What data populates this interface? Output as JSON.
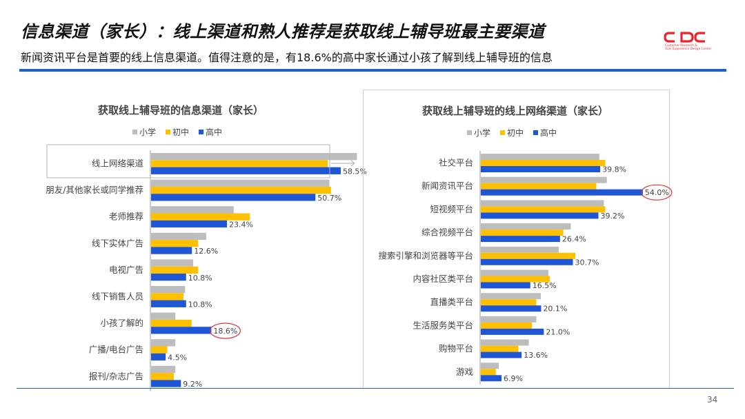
{
  "header": {
    "title": "信息渠道（家长）：线上渠道和熟人推荐是获取线上辅导班最主要渠道",
    "subtitle": "新闻资讯平台是首要的线上信息渠道。值得注意的是，有18.6%的高中家长通过小孩了解到线上辅导班的信息"
  },
  "logo": {
    "text": "CDC",
    "line1": "Customer Research &",
    "line2": "User Experience Design Center",
    "color": "#e8242c"
  },
  "page_number": "34",
  "colors": {
    "小学": "#bdbdbd",
    "初中": "#ffc000",
    "高中": "#1f56d6",
    "accent_line": "#1f5fc8",
    "highlight_circle": "#d9343a"
  },
  "chart_data": [
    {
      "type": "bar",
      "orientation": "horizontal",
      "title": "获取线上辅导班的信息渠道（家长）",
      "legend_position": "top",
      "categories": [
        "线上网络渠道",
        "朋友/其他家长或同学推荐",
        "老师推荐",
        "线下实体广告",
        "电视广告",
        "线下销售人员",
        "小孩了解的",
        "广播/电台广告",
        "报刊/杂志广告"
      ],
      "series": [
        {
          "name": "小学",
          "values": [
            63.5,
            55.0,
            25.5,
            17.0,
            13.0,
            10.5,
            7.5,
            7.5,
            7.5
          ]
        },
        {
          "name": "初中",
          "values": [
            54.5,
            55.5,
            30.5,
            14.5,
            14.5,
            10.0,
            12.5,
            5.0,
            7.0
          ]
        },
        {
          "name": "高中",
          "values": [
            58.5,
            50.7,
            23.4,
            12.6,
            10.8,
            10.8,
            18.6,
            4.5,
            9.2
          ]
        }
      ],
      "value_labels": [
        "58.5%",
        "50.7%",
        "23.4%",
        "12.6%",
        "10.8%",
        "10.8%",
        "18.6%",
        "4.5%",
        "9.2%"
      ],
      "highlight_box_category": "线上网络渠道",
      "circled_label": "18.6%",
      "xlim": [
        0,
        70
      ]
    },
    {
      "type": "bar",
      "orientation": "horizontal",
      "title": "获取线上辅导班的线上网络渠道（家长）",
      "legend_position": "top",
      "categories": [
        "社交平台",
        "新闻资讯平台",
        "短视频平台",
        "综合视频平台",
        "搜索引擎和浏览器等平台",
        "内容社区类平台",
        "直播类平台",
        "生活服务类平台",
        "购物平台",
        "游戏"
      ],
      "series": [
        {
          "name": "小学",
          "values": [
            39.5,
            42.0,
            41.0,
            30.0,
            26.0,
            22.5,
            20.0,
            18.5,
            16.0,
            6.0
          ]
        },
        {
          "name": "初中",
          "values": [
            41.5,
            38.5,
            41.5,
            27.5,
            31.5,
            23.0,
            18.5,
            17.0,
            12.5,
            5.0
          ]
        },
        {
          "name": "高中",
          "values": [
            39.8,
            54.0,
            39.2,
            26.4,
            30.7,
            16.5,
            20.1,
            21.0,
            13.6,
            6.9
          ]
        }
      ],
      "value_labels": [
        "39.8%",
        "54.0%",
        "39.2%",
        "26.4%",
        "30.7%",
        "16.5%",
        "20.1%",
        "21.0%",
        "13.6%",
        "6.9%"
      ],
      "circled_label": "54.0%",
      "xlim": [
        0,
        60
      ]
    }
  ]
}
